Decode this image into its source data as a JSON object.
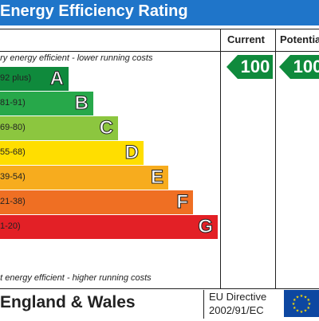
{
  "title": "Energy Efficiency Rating",
  "columns": {
    "current": "Current",
    "potential": "Potentia"
  },
  "top_note": "ery energy efficient - lower running costs",
  "bottom_note": "ot energy efficient - higher running costs",
  "bands": [
    {
      "range": "92 plus)",
      "letter": "A",
      "color": "#0f8a3c"
    },
    {
      "range": "81-91)",
      "letter": "B",
      "color": "#27a84a"
    },
    {
      "range": "69-80)",
      "letter": "C",
      "color": "#8cc63f"
    },
    {
      "range": "55-68)",
      "letter": "D",
      "color": "#ffde00"
    },
    {
      "range": "39-54)",
      "letter": "E",
      "color": "#f7ac1e"
    },
    {
      "range": "21-38)",
      "letter": "F",
      "color": "#ef6f23"
    },
    {
      "range": "1-20)",
      "letter": "G",
      "color": "#e32026"
    }
  ],
  "current_rating": "100",
  "potential_rating": "100",
  "rating_color": "#0f8a3c",
  "footer": {
    "country": "England & Wales",
    "directive_line1": "EU Directive",
    "directive_line2": "2002/91/EC"
  },
  "eu_flag": {
    "icon": "eu-flag-icon",
    "background": "#0d47a1",
    "stars": "#ffdd00"
  }
}
